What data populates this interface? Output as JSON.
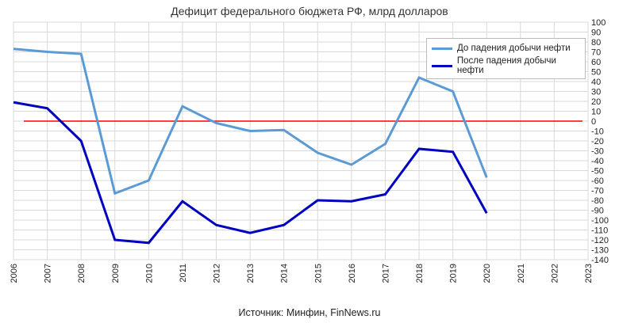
{
  "chart_data": {
    "type": "line",
    "title": "Дефицит федерального бюджета РФ, млрд долларов",
    "source": "Источник: Минфин, FinNews.ru",
    "x": [
      "2006",
      "2007",
      "2008",
      "2009",
      "2010",
      "2011",
      "2012",
      "2013",
      "2014",
      "2015",
      "2016",
      "2017",
      "2018",
      "2019",
      "2020",
      "2021",
      "2022",
      "2023"
    ],
    "ylim": [
      -140,
      100
    ],
    "yticks": [
      100,
      90,
      80,
      70,
      60,
      50,
      40,
      30,
      20,
      10,
      0,
      -10,
      -20,
      -30,
      -40,
      -50,
      -60,
      -70,
      -80,
      -90,
      -100,
      -110,
      -120,
      -130,
      -140
    ],
    "grid": true,
    "legend_position": "top-right",
    "series": [
      {
        "name": "До падения добычи нефти",
        "color": "#5b9bd5",
        "values": [
          73,
          70,
          68,
          -73,
          -60,
          15,
          -2,
          -10,
          -9,
          -32,
          -44,
          -23,
          44,
          30,
          -57,
          null,
          null,
          null
        ]
      },
      {
        "name": "После падения добычи нефти",
        "color": "#0000c0",
        "values": [
          19,
          13,
          -20,
          -120,
          -123,
          -81,
          -105,
          -113,
          -105,
          -80,
          -81,
          -74,
          -28,
          -31,
          -93,
          null,
          null,
          null
        ]
      }
    ],
    "reference_line": {
      "value": 0,
      "color": "#ff0000"
    }
  }
}
